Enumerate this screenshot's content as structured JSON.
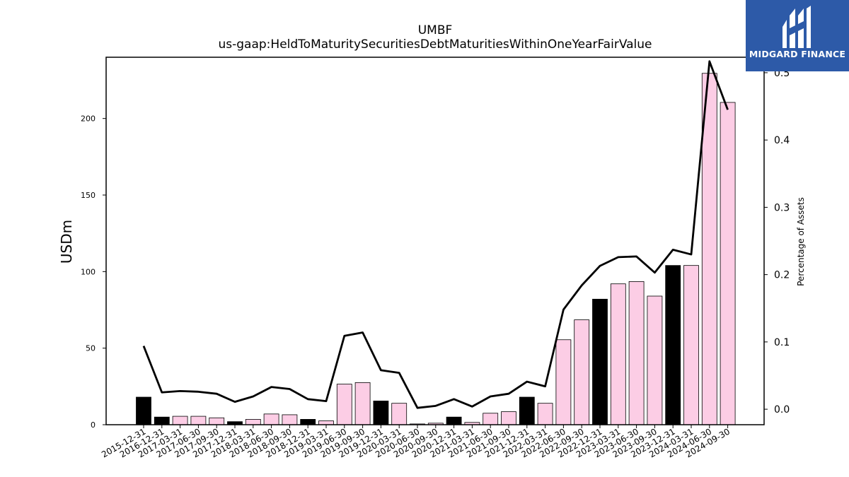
{
  "chart_data": {
    "type": "bar+line",
    "title": "UMBF",
    "subtitle": "us-gaap:HeldToMaturitySecuritiesDebtMaturitiesWithinOneYearFairValue",
    "ylabel": "USDm",
    "y2label": "Percentage of Assets",
    "ylim": [
      0,
      240
    ],
    "y2lim": [
      -0.023,
      0.523
    ],
    "yticks": [
      0,
      50,
      100,
      150,
      200
    ],
    "y2ticks": [
      0.0,
      0.1,
      0.2,
      0.3,
      0.4,
      0.5
    ],
    "y2tick_labels": [
      "0.0",
      "0.1",
      "0.2",
      "0.3",
      "0.4",
      "0.5"
    ],
    "categories": [
      "2015-12-31",
      "2016-12-31",
      "2017-03-31",
      "2017-06-30",
      "2017-09-30",
      "2017-12-31",
      "2018-03-31",
      "2018-06-30",
      "2018-09-30",
      "2018-12-31",
      "2019-03-31",
      "2019-06-30",
      "2019-09-30",
      "2019-12-31",
      "2020-03-31",
      "2020-06-30",
      "2020-09-30",
      "2020-12-31",
      "2021-03-31",
      "2021-06-30",
      "2021-09-30",
      "2021-12-31",
      "2022-03-31",
      "2022-06-30",
      "2022-09-30",
      "2022-12-31",
      "2023-03-31",
      "2023-06-30",
      "2023-09-30",
      "2023-12-31",
      "2024-03-31",
      "2024-06-30",
      "2024-09-30"
    ],
    "series": [
      {
        "kind": "bar",
        "values": [
          18,
          5,
          5.5,
          5.5,
          4.5,
          2,
          3.5,
          7,
          6.5,
          3.5,
          2.5,
          26.5,
          27.5,
          15.5,
          14,
          0.5,
          1,
          5,
          1.5,
          7.5,
          8.5,
          18,
          14,
          55.5,
          68.5,
          82,
          92,
          93.5,
          84,
          104,
          104,
          229.5,
          210.5
        ],
        "is_year_end": [
          true,
          true,
          false,
          false,
          false,
          true,
          false,
          false,
          false,
          true,
          false,
          false,
          false,
          true,
          false,
          false,
          false,
          true,
          false,
          false,
          false,
          true,
          false,
          false,
          false,
          true,
          false,
          false,
          false,
          true,
          false,
          false,
          false
        ]
      },
      {
        "kind": "line",
        "axis": "right",
        "values": [
          0.094,
          0.025,
          0.027,
          0.026,
          0.023,
          0.011,
          0.019,
          0.033,
          0.03,
          0.015,
          0.012,
          0.109,
          0.114,
          0.058,
          0.054,
          0.002,
          0.005,
          0.015,
          0.004,
          0.019,
          0.023,
          0.041,
          0.034,
          0.148,
          0.184,
          0.213,
          0.226,
          0.227,
          0.203,
          0.237,
          0.23,
          0.517,
          0.445
        ]
      }
    ],
    "colors": {
      "bar_year_end": "#000000",
      "bar_other": "#fccde5",
      "bar_edge": "#000000",
      "line": "#000000"
    },
    "grid": false
  },
  "logo": {
    "text": "MIDGARD FINANCE",
    "background": "#2d5aa8"
  }
}
